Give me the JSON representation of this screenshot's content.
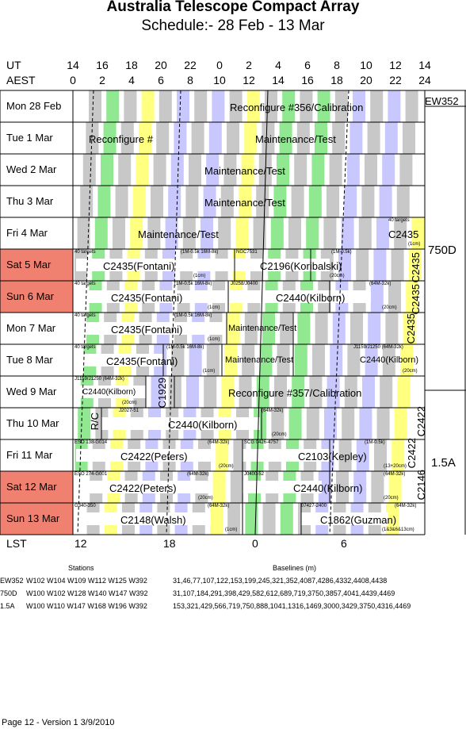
{
  "title": "Australia Telescope Compact Array",
  "subtitle": "Schedule:- 28 Feb - 13 Mar",
  "header": {
    "ut_label": "UT",
    "aest_label": "AEST",
    "ut_hours": [
      "14",
      "16",
      "18",
      "20",
      "22",
      "0",
      "2",
      "4",
      "6",
      "8",
      "10",
      "12",
      "14"
    ],
    "aest_hours": [
      "0",
      "2",
      "4",
      "6",
      "8",
      "10",
      "12",
      "14",
      "16",
      "18",
      "20",
      "22",
      "24"
    ]
  },
  "days": [
    {
      "label": "Mon  28 Feb",
      "weekend": false
    },
    {
      "label": "Tue   1  Mar",
      "weekend": false
    },
    {
      "label": "Wed   2  Mar",
      "weekend": false
    },
    {
      "label": "Thu   3  Mar",
      "weekend": false
    },
    {
      "label": "Fri    4  Mar",
      "weekend": false
    },
    {
      "label": "Sat   5  Mar",
      "weekend": true
    },
    {
      "label": "Sun   6  Mar",
      "weekend": true
    },
    {
      "label": "Mon   7  Mar",
      "weekend": false
    },
    {
      "label": "Tue   8  Mar",
      "weekend": false
    },
    {
      "label": "Wed   9  Mar",
      "weekend": false
    },
    {
      "label": "Thu  10 Mar",
      "weekend": false
    },
    {
      "label": "Fri   11 Mar",
      "weekend": false
    },
    {
      "label": "Sat   12 Mar",
      "weekend": true
    },
    {
      "label": "Sun   13 Mar",
      "weekend": true
    }
  ],
  "blocks": {
    "r0_main": "Reconfigure #356/Calibration",
    "r1_a": "Reconfigure #",
    "r1_b": "Maintenance/Test",
    "r2_main": "Maintenance/Test",
    "r3_main": "Maintenance/Test",
    "r4_main": "Maintenance/Test",
    "r4_c2435": "C2435",
    "r4_note1": "40 targets",
    "r4_note2": "(1cm)",
    "r5_a": "C2435(Fontani)",
    "r5_b": "C2196(Koribalski)",
    "r5_n1": "40 targets",
    "r5_n2": "(1M-0.5k 16M-8k)",
    "r5_n3": "NGC7531",
    "r5_n4": "(1M-0.5k)",
    "r5_n5": "(1cm)",
    "r5_n6": "(20cm)",
    "r6_a": "C2435(Fontani)",
    "r6_b": "C2440(Kilborn)",
    "r6_n1": "40 targets",
    "r6_n2": "(1M-0.5k 16M-8k)",
    "r6_n3": "J0258/J0400",
    "r6_n4": "(64M-32k)",
    "r6_n5": "(1cm)",
    "r6_n6": "(20cm)",
    "r7_a": "C2435(Fontani)",
    "r7_b": "Maintenance/Test",
    "r7_n1": "40 targets",
    "r7_n2": "(1M-0.5k 16M-8k)",
    "r7_n3": "(1cm)",
    "r8_a": "C2435(Fontani)",
    "r8_b": "Maintenance/Test",
    "r8_c": "C2440(Kilborn)",
    "r8_n1": "40 targets",
    "r8_n2": "(1M-0.5k 16M-8k)",
    "r8_n3": "J1159/J1250  (64M-32k)",
    "r8_n4": "(1cm)",
    "r8_n5": "(20cm)",
    "r9_a": "C2440(Kilborn)",
    "r9_b": "Reconfigure #357/Calibration",
    "r9_c1929": "C1929",
    "r9_n1": "J1159/J1250  (64M-32k)",
    "r9_n2": "(20cm)",
    "r10_rc": "R/C",
    "r10_a": "C2440(Kilborn)",
    "r10_n1": "J2027-51",
    "r10_n2": "(64M-32k)",
    "r10_n3": "(20cm)",
    "r11_a": "C2422(Peters)",
    "r11_b": "C2103(Kepley)",
    "r11_n1": "ESO 138-G014",
    "r11_n2": "(64M-32k)",
    "r11_n3": "SCG 0426-4757",
    "r11_n4": "(1M-0.5k)",
    "r11_n5": "(20cm)",
    "r11_n6": "(13+20cm)",
    "r12_a": "C2422(Peters)",
    "r12_b": "C2440(Kilborn)",
    "r12_n1": "ESO 274-G001",
    "r12_n2": "(64M-32k)",
    "r12_n3": "J0400-52",
    "r12_n4": "(64M-32k)",
    "r12_n5": "(20cm)",
    "r12_n6": "(20cm)",
    "r13_a": "C2148(Walsh)",
    "r13_b": "C1862(Guzman)",
    "r13_n1": "G340-350",
    "r13_n2": "(64M-32k)",
    "r13_n3": "07427-2400",
    "r13_n4": "(64M-32k)",
    "r13_n5": "(1cm)",
    "r13_n6": "(1&3&6&13cm)",
    "side_c2435_a": "C2435",
    "side_c2435_b": "C2435",
    "side_c2435_c": "C2435",
    "side_c2422_a": "C2422",
    "side_c2422_b": "C2422",
    "side_c2146": "C2146"
  },
  "configs": {
    "ew352": "EW352",
    "c750d": "750D",
    "c15a": "1.5A"
  },
  "lst": {
    "label": "LST",
    "ticks": [
      "12",
      "18",
      "0",
      "6"
    ]
  },
  "footer": {
    "stations_hdr": "Stations",
    "baselines_hdr": "Baselines (m)",
    "rows": [
      {
        "cfg": "EW352",
        "stations": "W102 W104 W109 W112 W125 W392",
        "baselines": "31,46,77,107,122,153,199,245,321,352,4087,4286,4332,4408,4438"
      },
      {
        "cfg": "750D",
        "stations": "W100 W102 W128 W140 W147 W392",
        "baselines": "31,107,184,291,398,429,582,612,689,719,3750,3857,4041,4439,4469"
      },
      {
        "cfg": "1.5A",
        "stations": "W100 W110 W147 W168 W196 W392",
        "baselines": "153,321,429,566,719,750,888,1041,1316,1469,3000,3429,3750,4316,4469"
      }
    ],
    "page_info": "Page 12 - Version 1  3/9/2010"
  },
  "colors": {
    "yellow": "#ffff80",
    "blue": "#c8c8ff",
    "green": "#90e890",
    "gray": "#c8c8c8",
    "weekend": "#f08070"
  }
}
